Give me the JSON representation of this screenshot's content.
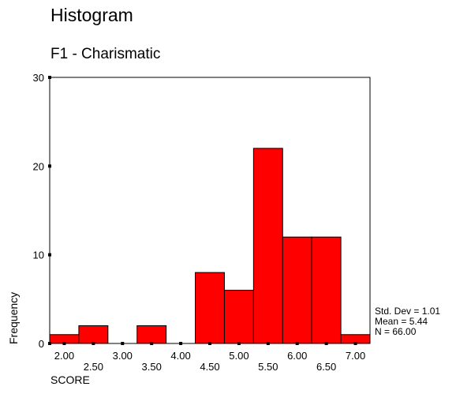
{
  "chart_data": {
    "type": "bar",
    "title": "Histogram",
    "subtitle": "F1 - Charismatic",
    "xlabel": "SCORE",
    "ylabel": "Frequency",
    "bin_centers": [
      2.0,
      2.5,
      3.0,
      3.5,
      4.0,
      4.5,
      5.0,
      5.5,
      6.0,
      6.5,
      7.0
    ],
    "bin_labels": [
      "2.00",
      "2.50",
      "3.00",
      "3.50",
      "4.00",
      "4.50",
      "5.00",
      "5.50",
      "6.00",
      "6.50",
      "7.00"
    ],
    "values": [
      1,
      2,
      0,
      2,
      0,
      8,
      6,
      22,
      12,
      12,
      1
    ],
    "ylim": [
      0,
      30
    ],
    "y_ticks": [
      0,
      10,
      20,
      30
    ],
    "grid": false,
    "bar_color": "#ff0000",
    "stats": {
      "std_dev": "Std. Dev = 1.01",
      "mean": "Mean = 5.44",
      "n": "N = 66.00"
    }
  }
}
